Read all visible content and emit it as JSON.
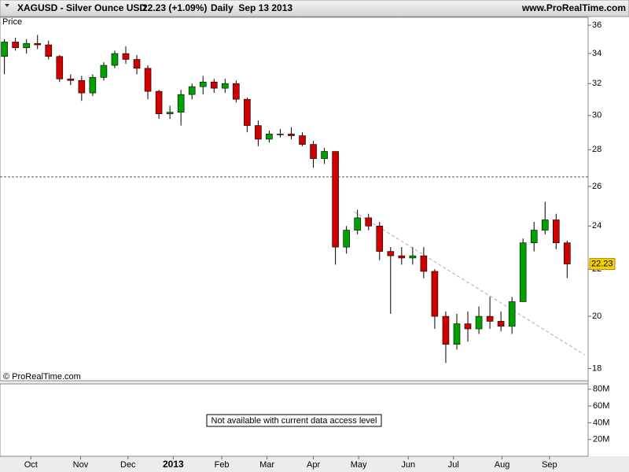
{
  "chart_data": [
    {
      "type": "candlestick",
      "title": "XAGUSD - Silver Ounce USD",
      "subtitle": "22.23 (+1.09%)",
      "period": "Daily  Sep 13 2013",
      "source": "www.ProRealTime.com",
      "ylabel": "Price",
      "watermark": "© ProRealTime.com",
      "log_scale": true,
      "up_color": "#00a000",
      "down_color": "#d00000",
      "open": [
        33.8,
        34.8,
        34.4,
        34.7,
        34.6,
        33.8,
        32.3,
        32.2,
        31.4,
        32.4,
        33.2,
        34.0,
        33.6,
        33.0,
        31.5,
        30.1,
        30.2,
        31.3,
        31.8,
        32.1,
        31.7,
        32.0,
        31.0,
        29.4,
        28.6,
        28.9,
        28.9,
        28.8,
        28.3,
        27.5,
        27.9,
        23.0,
        23.8,
        24.4,
        24.0,
        22.8,
        22.6,
        22.5,
        22.6,
        21.9,
        20.0,
        18.9,
        19.7,
        19.5,
        20.0,
        19.8,
        19.6,
        20.6,
        23.2,
        23.8,
        24.3,
        23.2
      ],
      "high": [
        35.0,
        35.1,
        35.0,
        35.3,
        34.9,
        33.9,
        32.6,
        32.5,
        32.6,
        33.4,
        34.2,
        34.5,
        33.9,
        33.2,
        31.6,
        30.6,
        31.6,
        32.0,
        32.5,
        32.3,
        32.3,
        32.2,
        31.1,
        29.7,
        29.1,
        29.2,
        29.3,
        29.0,
        28.5,
        28.1,
        27.9,
        24.0,
        24.8,
        24.6,
        24.2,
        23.0,
        23.0,
        23.0,
        23.0,
        22.0,
        20.2,
        20.1,
        20.2,
        20.4,
        20.8,
        20.2,
        20.8,
        23.4,
        24.2,
        25.2,
        24.6,
        23.3
      ],
      "low": [
        32.6,
        34.2,
        34.0,
        34.3,
        33.6,
        32.1,
        31.9,
        30.9,
        31.2,
        32.2,
        33.0,
        33.3,
        32.6,
        31.0,
        29.8,
        29.8,
        29.4,
        31.0,
        31.3,
        31.4,
        31.4,
        30.8,
        29.0,
        28.2,
        28.4,
        28.7,
        28.6,
        28.2,
        27.0,
        27.2,
        22.2,
        22.7,
        23.6,
        23.8,
        22.4,
        20.1,
        22.2,
        22.2,
        21.6,
        19.5,
        18.2,
        18.7,
        19.0,
        19.3,
        19.5,
        19.4,
        19.3,
        20.6,
        22.8,
        23.6,
        22.9,
        21.6
      ],
      "close": [
        34.8,
        34.4,
        34.7,
        34.6,
        33.8,
        32.3,
        32.2,
        31.4,
        32.4,
        33.2,
        34.0,
        33.6,
        33.0,
        31.5,
        30.1,
        30.2,
        31.3,
        31.8,
        32.1,
        31.7,
        32.0,
        31.0,
        29.4,
        28.6,
        28.9,
        28.9,
        28.8,
        28.3,
        27.5,
        27.9,
        23.0,
        23.8,
        24.4,
        24.0,
        22.8,
        22.6,
        22.5,
        22.6,
        21.9,
        20.0,
        18.9,
        19.7,
        19.5,
        20.0,
        19.8,
        19.6,
        20.6,
        23.2,
        23.8,
        24.3,
        23.2,
        22.23
      ],
      "xlim": [
        -0.4,
        52.9
      ],
      "xticks": [
        {
          "value": 2.4,
          "label": "Oct"
        },
        {
          "value": 6.9,
          "label": "Nov"
        },
        {
          "value": 11.2,
          "label": "Dec"
        },
        {
          "value": 15.3,
          "label": "2013"
        },
        {
          "value": 19.7,
          "label": "Feb"
        },
        {
          "value": 23.8,
          "label": "Mar"
        },
        {
          "value": 28,
          "label": "Apr"
        },
        {
          "value": 32.1,
          "label": "May"
        },
        {
          "value": 36.6,
          "label": "Jun"
        },
        {
          "value": 40.7,
          "label": "Jul"
        },
        {
          "value": 45.1,
          "label": "Aug"
        },
        {
          "value": 49.4,
          "label": "Sep"
        }
      ],
      "ylim": [
        17.56,
        36.58
      ],
      "yticks": [
        18,
        20,
        22,
        24,
        26,
        28,
        30,
        32,
        34,
        36
      ],
      "hline": 26.5,
      "trendline": {
        "x": [
          31.7,
          52.6
        ],
        "y": [
          24.7,
          18.5
        ]
      }
    },
    {
      "type": "volume",
      "note": "Not available with current data access level",
      "ylim": [
        0,
        86400000
      ],
      "yticks": [
        {
          "value": 20000000,
          "label": "20M"
        },
        {
          "value": 40000000,
          "label": "40M"
        },
        {
          "value": 60000000,
          "label": "60M"
        },
        {
          "value": 80000000,
          "label": "80M"
        }
      ]
    }
  ]
}
